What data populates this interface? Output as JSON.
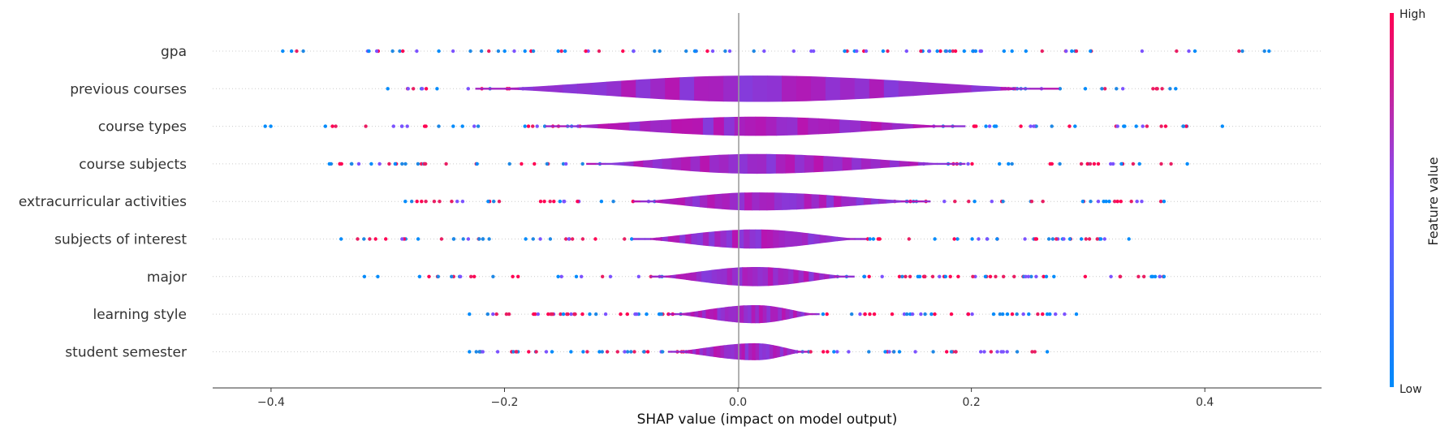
{
  "chart_data": {
    "type": "scatter",
    "style": "shap-violin-summary",
    "xlabel": "SHAP value (impact on model output)",
    "xlim": [
      -0.45,
      0.5
    ],
    "xticks": [
      -0.4,
      -0.2,
      0.0,
      0.2,
      0.4
    ],
    "xtick_labels": [
      "−0.4",
      "−0.2",
      "0.0",
      "0.2",
      "0.4"
    ],
    "colorbar": {
      "label": "Feature value",
      "high_label": "High",
      "low_label": "Low",
      "high_color": "#ff0052",
      "low_color": "#008bfb"
    },
    "features": [
      {
        "name": "gpa",
        "range": [
          -0.39,
          0.455
        ],
        "violin_range": [
          -0.3,
          0.3
        ],
        "violin_half_width": 0.0
      },
      {
        "name": "previous courses",
        "range": [
          -0.3,
          0.375
        ],
        "violin_range": [
          -0.225,
          0.275
        ],
        "violin_half_width": 0.72
      },
      {
        "name": "course types",
        "range": [
          -0.405,
          0.415
        ],
        "violin_range": [
          -0.165,
          0.195
        ],
        "violin_half_width": 0.46
      },
      {
        "name": "course subjects",
        "range": [
          -0.35,
          0.385
        ],
        "violin_range": [
          -0.13,
          0.195
        ],
        "violin_half_width": 0.48
      },
      {
        "name": "extracurricular activities",
        "range": [
          -0.285,
          0.365
        ],
        "violin_range": [
          -0.09,
          0.165
        ],
        "violin_half_width": 0.42
      },
      {
        "name": "subjects of interest",
        "range": [
          -0.34,
          0.335
        ],
        "violin_range": [
          -0.09,
          0.11
        ],
        "violin_half_width": 0.46
      },
      {
        "name": "major",
        "range": [
          -0.32,
          0.365
        ],
        "violin_range": [
          -0.075,
          0.1
        ],
        "violin_half_width": 0.46
      },
      {
        "name": "learning style",
        "range": [
          -0.23,
          0.29
        ],
        "violin_range": [
          -0.06,
          0.07
        ],
        "violin_half_width": 0.42
      },
      {
        "name": "student semester",
        "range": [
          -0.23,
          0.265
        ],
        "violin_range": [
          -0.06,
          0.06
        ],
        "violin_half_width": 0.38
      }
    ],
    "grid": false,
    "legend": "colorbar-right"
  }
}
